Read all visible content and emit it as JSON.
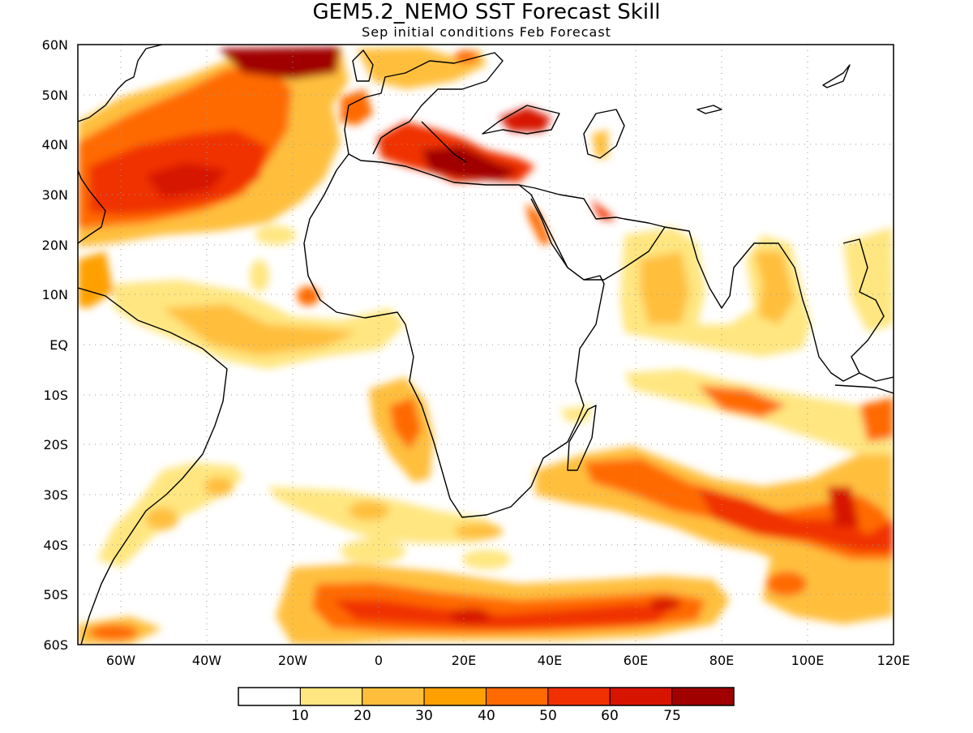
{
  "title": "GEM5.2_NEMO SST Forecast Skill",
  "subtitle": "Sep initial conditions  Feb Forecast",
  "map": {
    "lon_range": [
      -70,
      120
    ],
    "lat_range": [
      -60,
      60
    ],
    "grid": "dotted",
    "lat_labels": [
      "60N",
      "50N",
      "40N",
      "30N",
      "20N",
      "10N",
      "EQ",
      "10S",
      "20S",
      "30S",
      "40S",
      "50S",
      "60S"
    ],
    "lon_labels": [
      "60W",
      "40W",
      "20W",
      "0",
      "20E",
      "40E",
      "60E",
      "80E",
      "100E",
      "120E"
    ]
  },
  "colorbar": {
    "labels": [
      "10",
      "20",
      "30",
      "40",
      "50",
      "60",
      "75"
    ],
    "colors": [
      "#ffffff",
      "#ffe680",
      "#ffbf3c",
      "#ffa000",
      "#ff6a00",
      "#f03000",
      "#d71400",
      "#a00000"
    ]
  },
  "chart_data": {
    "type": "heatmap",
    "title": "GEM5.2_NEMO SST Forecast Skill",
    "subtitle": "Sep initial conditions  Feb Forecast",
    "xlim": [
      -70,
      120
    ],
    "ylim": [
      -60,
      60
    ],
    "levels": [
      10,
      20,
      30,
      40,
      50,
      60,
      75
    ],
    "features": [
      {
        "region": "North Atlantic subpolar (30W-10W, 55N-60N)",
        "level": 75
      },
      {
        "region": "Subtropical North Atlantic band (70W-20W, 20N-45N)",
        "level": 60
      },
      {
        "region": "Mediterranean Sea",
        "level": 75
      },
      {
        "region": "Black Sea",
        "level": 75
      },
      {
        "region": "Red Sea",
        "level": 60
      },
      {
        "region": "Persian Gulf",
        "level": 60
      },
      {
        "region": "Equatorial Atlantic",
        "level": 30
      },
      {
        "region": "Arabian Sea / Bay of Bengal",
        "level": 30
      },
      {
        "region": "South Indian Ocean band (60E-120E, 30S-45S)",
        "level": 60
      },
      {
        "region": "Southern Ocean band (20W-80E, 48S-58S)",
        "level": 60
      },
      {
        "region": "Southeast Atlantic off Angola (0-15E, 10S-25S)",
        "level": 40
      },
      {
        "region": "Southeast Indian Ocean (80E-120E, 10S-20S)",
        "level": 50
      }
    ]
  }
}
